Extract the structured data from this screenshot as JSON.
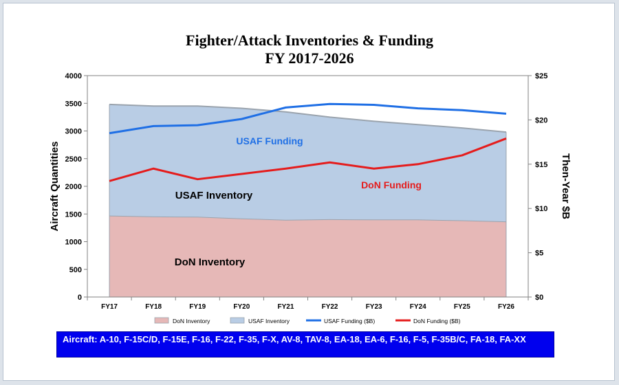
{
  "chart": {
    "title_line1": "Fighter/Attack Inventories & Funding",
    "title_line2": "FY 2017-2026"
  },
  "footer": {
    "aircraft_text": "Aircraft: A-10, F-15C/D, F-15E, F-16, F-22, F-35, F-X, AV-8,  TAV-8, EA-18, EA-6, F-16, F-5, F-35B/C, FA-18, FA-XX"
  },
  "chart_data": {
    "type": "area",
    "title": "Fighter/Attack Inventories & Funding FY 2017-2026",
    "categories": [
      "FY17",
      "FY18",
      "FY19",
      "FY20",
      "FY21",
      "FY22",
      "FY23",
      "FY24",
      "FY25",
      "FY26"
    ],
    "ylabel": "Aircraft Quantities",
    "y2label": "Then-Year $B",
    "ylim": [
      0,
      4000
    ],
    "y2lim": [
      0,
      25
    ],
    "yticks": [
      0,
      500,
      1000,
      1500,
      2000,
      2500,
      3000,
      3500,
      4000
    ],
    "y2ticks": [
      "$0",
      "$5",
      "$10",
      "$15",
      "$20",
      "$25"
    ],
    "series": [
      {
        "name": "DoN  Inventory",
        "kind": "stacked-area",
        "color": "#e6b8b7",
        "values": [
          1470,
          1455,
          1450,
          1420,
          1395,
          1405,
          1400,
          1400,
          1385,
          1365
        ]
      },
      {
        "name": "USAF Inventory",
        "kind": "stacked-area",
        "color": "#b9cde5",
        "values": [
          2010,
          1995,
          2000,
          1990,
          1950,
          1845,
          1775,
          1715,
          1670,
          1615
        ]
      },
      {
        "name": "USAF Funding ($B)",
        "kind": "line",
        "axis": "right",
        "color": "#1f6fe5",
        "values": [
          18.5,
          19.3,
          19.4,
          20.1,
          21.4,
          21.8,
          21.7,
          21.3,
          21.1,
          20.7
        ]
      },
      {
        "name": "DoN Funding ($B)",
        "kind": "line",
        "axis": "right",
        "color": "#e51c1c",
        "values": [
          13.1,
          14.5,
          13.3,
          13.9,
          14.5,
          15.2,
          14.5,
          15.0,
          16.0,
          17.9
        ]
      }
    ],
    "annotations": [
      "USAF Funding",
      "DoN Funding",
      "USAF Inventory",
      "DoN Inventory"
    ],
    "legend_position": "bottom",
    "grid": false
  }
}
